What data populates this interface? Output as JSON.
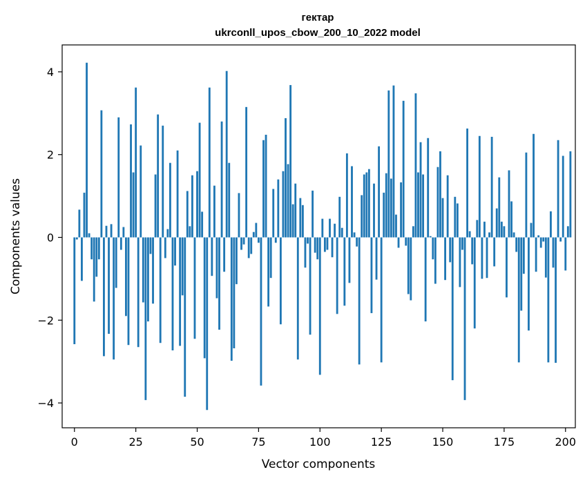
{
  "chart_data": {
    "type": "bar",
    "title_line1": "гектар",
    "title_line2": "ukrconll_upos_cbow_200_10_2022 model",
    "xlabel": "Vector components",
    "ylabel": "Components values",
    "xlim": [
      -5,
      204
    ],
    "ylim": [
      -4.6,
      4.65
    ],
    "xticks": [
      0,
      25,
      50,
      75,
      100,
      125,
      150,
      175,
      200
    ],
    "yticks": [
      -4,
      -2,
      0,
      2,
      4
    ],
    "ytick_labels": [
      "−4",
      "−2",
      "0",
      "2",
      "4"
    ],
    "bar_color": "#1f77b4",
    "grid": false,
    "values": [
      -2.58,
      -0.05,
      0.67,
      -1.05,
      1.08,
      4.22,
      0.1,
      -0.53,
      -1.55,
      -0.95,
      -0.53,
      3.07,
      -2.87,
      0.28,
      -2.33,
      0.32,
      -2.95,
      -1.22,
      2.9,
      -0.3,
      0.25,
      -1.9,
      -2.6,
      2.73,
      1.57,
      3.62,
      -2.65,
      2.22,
      -1.57,
      -3.93,
      -2.03,
      -0.4,
      -1.6,
      1.52,
      2.97,
      -2.55,
      2.7,
      -0.5,
      0.2,
      1.8,
      -2.73,
      -0.68,
      2.1,
      -2.62,
      -1.4,
      -3.85,
      1.12,
      0.27,
      1.5,
      -2.45,
      1.6,
      2.77,
      0.62,
      -2.92,
      -4.17,
      3.62,
      -0.93,
      1.25,
      -1.47,
      -2.23,
      2.8,
      -0.83,
      4.02,
      1.8,
      -2.98,
      -2.68,
      -1.13,
      1.07,
      -0.3,
      -0.17,
      3.15,
      -0.5,
      -0.4,
      0.13,
      0.35,
      -0.13,
      -3.58,
      2.35,
      2.48,
      -1.67,
      -0.98,
      1.17,
      -0.13,
      1.4,
      -2.1,
      1.6,
      2.88,
      1.77,
      3.68,
      0.8,
      1.3,
      -2.95,
      0.95,
      0.78,
      -0.73,
      -0.15,
      -2.35,
      1.13,
      -0.37,
      -0.53,
      -3.32,
      0.45,
      -0.35,
      -0.3,
      0.45,
      -0.48,
      0.33,
      -1.85,
      0.98,
      0.23,
      -1.65,
      2.03,
      -1.1,
      1.72,
      0.12,
      -0.22,
      -3.07,
      1.02,
      1.52,
      1.57,
      1.65,
      -1.83,
      1.3,
      -1.02,
      2.2,
      -3.02,
      1.08,
      1.55,
      3.55,
      1.42,
      3.67,
      0.55,
      -0.25,
      1.33,
      3.3,
      -0.2,
      -1.37,
      -1.52,
      0.27,
      3.48,
      1.57,
      2.3,
      1.52,
      -2.03,
      2.4,
      0.03,
      -0.53,
      -1.12,
      1.7,
      2.08,
      0.95,
      -1.03,
      1.5,
      -0.6,
      -3.45,
      0.98,
      0.82,
      -1.2,
      -0.3,
      -3.93,
      2.63,
      0.15,
      -0.65,
      -2.2,
      0.42,
      2.45,
      -1.0,
      0.38,
      -0.98,
      0.12,
      2.43,
      -0.7,
      0.7,
      1.45,
      0.38,
      0.27,
      -1.45,
      1.62,
      0.87,
      0.12,
      -0.35,
      -3.02,
      -1.77,
      -0.88,
      2.05,
      -2.25,
      0.35,
      2.5,
      -0.83,
      0.05,
      -0.25,
      -0.1,
      -0.97,
      -3.02,
      0.63,
      -0.73,
      -3.03,
      2.35,
      -0.1,
      1.97,
      -0.8,
      0.27,
      2.08
    ]
  }
}
